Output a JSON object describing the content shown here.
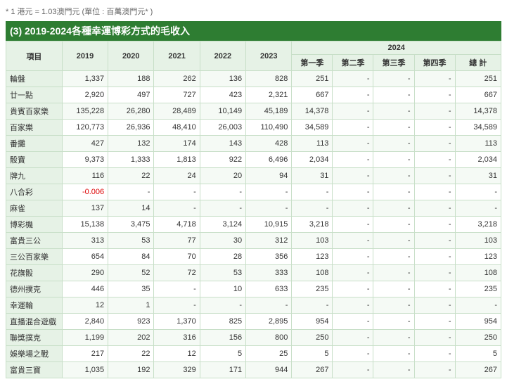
{
  "note": "* 1 港元 = 1.03澳門元 (單位 : 百萬澳門元* )",
  "title": "(3) 2019-2024各種幸運博彩方式的毛收入",
  "header": {
    "item": "項目",
    "y2019": "2019",
    "y2020": "2020",
    "y2021": "2021",
    "y2022": "2022",
    "y2023": "2023",
    "y2024": "2024",
    "q1": "第一季",
    "q2": "第二季",
    "q3": "第三季",
    "q4": "第四季",
    "total": "總 計"
  },
  "rows": [
    {
      "label": "輪盤",
      "y19": "1,337",
      "y20": "188",
      "y21": "262",
      "y22": "136",
      "y23": "828",
      "q1": "251",
      "q2": "-",
      "q3": "-",
      "q4": "-",
      "tot": "251"
    },
    {
      "label": "廿一點",
      "y19": "2,920",
      "y20": "497",
      "y21": "727",
      "y22": "423",
      "y23": "2,321",
      "q1": "667",
      "q2": "-",
      "q3": "-",
      "q4": "-",
      "tot": "667"
    },
    {
      "label": "貴賓百家樂",
      "y19": "135,228",
      "y20": "26,280",
      "y21": "28,489",
      "y22": "10,149",
      "y23": "45,189",
      "q1": "14,378",
      "q2": "-",
      "q3": "-",
      "q4": "-",
      "tot": "14,378"
    },
    {
      "label": "百家樂",
      "y19": "120,773",
      "y20": "26,936",
      "y21": "48,410",
      "y22": "26,003",
      "y23": "110,490",
      "q1": "34,589",
      "q2": "-",
      "q3": "-",
      "q4": "-",
      "tot": "34,589"
    },
    {
      "label": "番攤",
      "y19": "427",
      "y20": "132",
      "y21": "174",
      "y22": "143",
      "y23": "428",
      "q1": "113",
      "q2": "-",
      "q3": "-",
      "q4": "-",
      "tot": "113"
    },
    {
      "label": "骰寶",
      "y19": "9,373",
      "y20": "1,333",
      "y21": "1,813",
      "y22": "922",
      "y23": "6,496",
      "q1": "2,034",
      "q2": "-",
      "q3": "-",
      "q4": "-",
      "tot": "2,034"
    },
    {
      "label": "牌九",
      "y19": "116",
      "y20": "22",
      "y21": "24",
      "y22": "20",
      "y23": "94",
      "q1": "31",
      "q2": "-",
      "q3": "-",
      "q4": "-",
      "tot": "31"
    },
    {
      "label": "八合彩",
      "y19": "-0.006",
      "y19neg": true,
      "y20": "-",
      "y21": "-",
      "y22": "-",
      "y23": "-",
      "q1": "-",
      "q2": "-",
      "q3": "-",
      "q4": "-",
      "tot": "-"
    },
    {
      "label": "麻雀",
      "y19": "137",
      "y20": "14",
      "y21": "-",
      "y22": "-",
      "y23": "-",
      "q1": "-",
      "q2": "-",
      "q3": "-",
      "q4": "-",
      "tot": "-"
    },
    {
      "label": "博彩機",
      "y19": "15,138",
      "y20": "3,475",
      "y21": "4,718",
      "y22": "3,124",
      "y23": "10,915",
      "q1": "3,218",
      "q2": "-",
      "q3": "-",
      "q4": "-",
      "tot": "3,218"
    },
    {
      "label": "富貴三公",
      "y19": "313",
      "y20": "53",
      "y21": "77",
      "y22": "30",
      "y23": "312",
      "q1": "103",
      "q2": "-",
      "q3": "-",
      "q4": "-",
      "tot": "103"
    },
    {
      "label": "三公百家樂",
      "y19": "654",
      "y20": "84",
      "y21": "70",
      "y22": "28",
      "y23": "356",
      "q1": "123",
      "q2": "-",
      "q3": "-",
      "q4": "-",
      "tot": "123"
    },
    {
      "label": "花旗骰",
      "y19": "290",
      "y20": "52",
      "y21": "72",
      "y22": "53",
      "y23": "333",
      "q1": "108",
      "q2": "-",
      "q3": "-",
      "q4": "-",
      "tot": "108"
    },
    {
      "label": "德州撲克",
      "y19": "446",
      "y20": "35",
      "y21": "-",
      "y22": "10",
      "y23": "633",
      "q1": "235",
      "q2": "-",
      "q3": "-",
      "q4": "-",
      "tot": "235"
    },
    {
      "label": "幸運輪",
      "y19": "12",
      "y20": "1",
      "y21": "-",
      "y22": "-",
      "y23": "-",
      "q1": "-",
      "q2": "-",
      "q3": "-",
      "q4": "-",
      "tot": "-"
    },
    {
      "label": "直播混合遊戲",
      "y19": "2,840",
      "y20": "923",
      "y21": "1,370",
      "y22": "825",
      "y23": "2,895",
      "q1": "954",
      "q2": "-",
      "q3": "-",
      "q4": "-",
      "tot": "954"
    },
    {
      "label": "聯獎撲克",
      "y19": "1,199",
      "y20": "202",
      "y21": "316",
      "y22": "156",
      "y23": "800",
      "q1": "250",
      "q2": "-",
      "q3": "-",
      "q4": "-",
      "tot": "250"
    },
    {
      "label": "娛樂場之戰",
      "y19": "217",
      "y20": "22",
      "y21": "12",
      "y22": "5",
      "y23": "25",
      "q1": "5",
      "q2": "-",
      "q3": "-",
      "q4": "-",
      "tot": "5"
    },
    {
      "label": "富貴三寶",
      "y19": "1,035",
      "y20": "192",
      "y21": "329",
      "y22": "171",
      "y23": "944",
      "q1": "267",
      "q2": "-",
      "q3": "-",
      "q4": "-",
      "tot": "267"
    }
  ]
}
